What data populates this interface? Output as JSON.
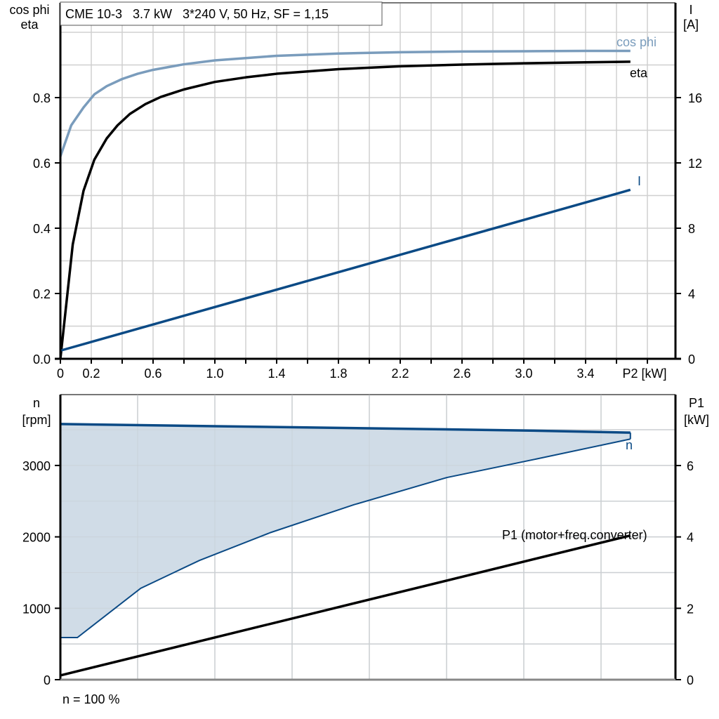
{
  "title": "CME 10-3   3.7 kW   3*240 V, 50 Hz, SF = 1,15",
  "footer_note": "n = 100 %",
  "colors": {
    "cos_phi": "#7a9cbc",
    "eta": "#000000",
    "current": "#0b4a85",
    "speed": "#0b4a85",
    "speed_fill": "#d0dce7",
    "p1": "#000000",
    "grid": "#d0d0d0"
  },
  "chart_data": [
    {
      "type": "line",
      "title": "CME 10-3   3.7 kW   3*240 V, 50 Hz, SF = 1,15",
      "xlabel": "P2 [kW]",
      "ylabel": "cos phi / eta",
      "y2label": "I [A]",
      "xlim": [
        0,
        3.98
      ],
      "ylim": [
        0,
        1.09
      ],
      "y2lim": [
        0,
        21.8
      ],
      "x_ticks": [
        "0",
        "0.2",
        "0.6",
        "1.0",
        "1.4",
        "1.8",
        "2.2",
        "2.6",
        "3.0",
        "3.4"
      ],
      "x_tick_values": [
        0,
        0.2,
        0.6,
        1.0,
        1.4,
        1.8,
        2.2,
        2.6,
        3.0,
        3.4
      ],
      "y_ticks": [
        "0.0",
        "0.2",
        "0.4",
        "0.6",
        "0.8"
      ],
      "y_tick_values": [
        0,
        0.2,
        0.4,
        0.6,
        0.8
      ],
      "y2_ticks": [
        "0",
        "4",
        "8",
        "12",
        "16"
      ],
      "y2_tick_values": [
        0,
        4,
        8,
        12,
        16
      ],
      "grid": true,
      "series": [
        {
          "name": "cos phi",
          "axis": "left",
          "x": [
            0,
            0.07,
            0.15,
            0.22,
            0.3,
            0.4,
            0.5,
            0.6,
            0.8,
            1.0,
            1.4,
            1.8,
            2.2,
            2.6,
            3.0,
            3.4,
            3.69
          ],
          "y": [
            0.62,
            0.715,
            0.77,
            0.81,
            0.835,
            0.857,
            0.873,
            0.885,
            0.902,
            0.914,
            0.928,
            0.935,
            0.939,
            0.941,
            0.942,
            0.943,
            0.943
          ]
        },
        {
          "name": "eta",
          "axis": "left",
          "x": [
            0,
            0.08,
            0.15,
            0.22,
            0.3,
            0.37,
            0.45,
            0.55,
            0.65,
            0.8,
            1.0,
            1.2,
            1.4,
            1.8,
            2.2,
            2.6,
            3.0,
            3.4,
            3.69
          ],
          "y": [
            0.0,
            0.35,
            0.515,
            0.61,
            0.675,
            0.715,
            0.75,
            0.78,
            0.802,
            0.825,
            0.848,
            0.862,
            0.873,
            0.887,
            0.896,
            0.901,
            0.905,
            0.908,
            0.91
          ]
        },
        {
          "name": "I",
          "axis": "right",
          "x": [
            0,
            3.69
          ],
          "y": [
            0.5,
            10.35
          ]
        }
      ],
      "annotations": [
        {
          "text": "cos phi",
          "x": 3.6,
          "y": 0.98
        },
        {
          "text": "eta",
          "x": 3.72,
          "y": 0.875
        },
        {
          "text": "I",
          "x": 3.74,
          "y": 0.535
        }
      ]
    },
    {
      "type": "area",
      "xlabel": "",
      "ylabel": "n [rpm]",
      "y2label": "P1 [kW]",
      "xlim": [
        0,
        3.98
      ],
      "ylim": [
        0,
        3990
      ],
      "y2lim": [
        0,
        7.98
      ],
      "y_ticks": [
        "0",
        "1000",
        "2000",
        "3000"
      ],
      "y_tick_values": [
        0,
        1000,
        2000,
        3000
      ],
      "y2_ticks": [
        "0",
        "2",
        "4",
        "6"
      ],
      "y2_tick_values": [
        0,
        2,
        4,
        6
      ],
      "grid": true,
      "series": [
        {
          "name": "n (upper)",
          "axis": "left",
          "x": [
            0,
            1.0,
            2.0,
            3.0,
            3.69
          ],
          "y": [
            3580,
            3550,
            3520,
            3490,
            3460
          ]
        },
        {
          "name": "n (lower)",
          "axis": "left",
          "x": [
            0,
            0.11,
            0.52,
            0.9,
            1.36,
            1.9,
            2.5,
            3.08,
            3.69
          ],
          "y": [
            590,
            590,
            1280,
            1670,
            2060,
            2450,
            2830,
            3090,
            3370
          ]
        },
        {
          "name": "P1 (motor+freq.converter)",
          "axis": "right",
          "x": [
            0,
            3.69
          ],
          "y": [
            0.12,
            4.04
          ]
        }
      ],
      "annotations": [
        {
          "text": "n",
          "x": 3.69,
          "y": 3270
        },
        {
          "text": "P1 (motor+freq.converter)",
          "x": 2.9,
          "y": 2020
        }
      ]
    }
  ],
  "labels": {
    "top_left_axis_line1": "cos phi",
    "top_left_axis_line2": "eta",
    "top_right_axis_line1": "I",
    "top_right_axis_line2": "[A]",
    "x_axis_unit": "P2 [kW]",
    "bottom_left_axis_line1": "n",
    "bottom_left_axis_line2": "[rpm]",
    "bottom_right_axis_line1": "P1",
    "bottom_right_axis_line2": "[kW]",
    "legend_cos_phi": "cos phi",
    "legend_eta": "eta",
    "legend_current": "I",
    "legend_speed": "n",
    "legend_p1": "P1 (motor+freq.converter)"
  }
}
